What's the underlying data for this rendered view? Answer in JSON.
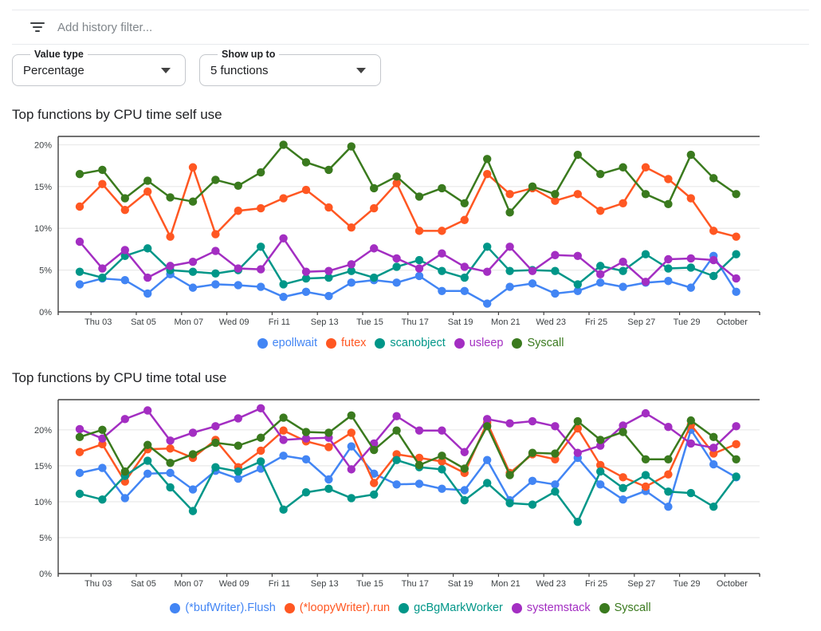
{
  "filter_bar": {
    "icon": "filter-list-icon",
    "placeholder": "Add history filter..."
  },
  "controls": {
    "value_type": {
      "label": "Value type",
      "value": "Percentage"
    },
    "show_up_to": {
      "label": "Show up to",
      "value": "5 functions"
    }
  },
  "chart_data": [
    {
      "type": "line",
      "title": "Top functions by CPU time self use",
      "x_labels": [
        "Thu 03",
        "Sat 05",
        "Mon 07",
        "Wed 09",
        "Fri 11",
        "Sep 13",
        "Tue 15",
        "Thu 17",
        "Sat 19",
        "Mon 21",
        "Wed 23",
        "Fri 25",
        "Sep 27",
        "Tue 29",
        "October"
      ],
      "y_tick_values": [
        0,
        5,
        10,
        15,
        20
      ],
      "y_tick_labels": [
        "0%",
        "5%",
        "10%",
        "15%",
        "20%"
      ],
      "ylim": [
        0,
        21
      ],
      "grid": "horizontal",
      "legend_position": "bottom",
      "series": [
        {
          "name": "epollwait",
          "color": "#4285F4",
          "values": [
            3.3,
            4.0,
            3.8,
            2.2,
            4.5,
            2.9,
            3.3,
            3.2,
            3.0,
            1.8,
            2.4,
            1.9,
            3.5,
            3.8,
            3.5,
            4.3,
            2.5,
            2.5,
            1.0,
            3.0,
            3.4,
            2.2,
            2.5,
            3.5,
            3.0,
            3.5,
            3.7,
            2.9,
            6.7,
            2.4
          ]
        },
        {
          "name": "futex",
          "color": "#FF5722",
          "values": [
            12.6,
            15.3,
            12.2,
            14.4,
            9.0,
            17.3,
            9.3,
            12.1,
            12.4,
            13.6,
            14.6,
            12.5,
            10.1,
            12.4,
            15.4,
            9.7,
            9.7,
            11.0,
            16.5,
            14.1,
            14.8,
            13.3,
            14.1,
            12.1,
            13.0,
            17.3,
            15.9,
            13.6,
            9.7,
            9.0
          ]
        },
        {
          "name": "scanobject",
          "color": "#009688",
          "values": [
            4.8,
            4.1,
            6.7,
            7.6,
            5.0,
            4.8,
            4.6,
            5.0,
            7.8,
            3.3,
            4.0,
            4.1,
            4.9,
            4.1,
            5.4,
            6.2,
            4.9,
            4.1,
            7.8,
            4.9,
            5.0,
            4.9,
            3.3,
            5.5,
            4.9,
            6.9,
            5.2,
            5.3,
            4.3,
            6.9
          ]
        },
        {
          "name": "usleep",
          "color": "#A32EC2",
          "values": [
            8.4,
            5.2,
            7.4,
            4.1,
            5.5,
            6.0,
            7.3,
            5.2,
            5.1,
            8.8,
            4.8,
            4.9,
            5.7,
            7.6,
            6.4,
            5.2,
            7.0,
            5.4,
            4.8,
            7.8,
            4.9,
            6.8,
            6.7,
            4.5,
            6.0,
            3.6,
            6.3,
            6.4,
            6.2,
            4.0
          ]
        },
        {
          "name": "Syscall",
          "color": "#3A7A1E",
          "values": [
            16.5,
            17.0,
            13.6,
            15.7,
            13.7,
            13.2,
            15.8,
            15.1,
            16.7,
            20.0,
            17.9,
            17.0,
            19.8,
            14.8,
            16.2,
            13.8,
            14.8,
            13.0,
            18.3,
            11.9,
            15.0,
            14.1,
            18.8,
            16.5,
            17.3,
            14.1,
            12.9,
            18.8,
            16.0,
            14.1
          ]
        }
      ]
    },
    {
      "type": "line",
      "title": "Top functions by CPU time total use",
      "x_labels": [
        "Thu 03",
        "Sat 05",
        "Mon 07",
        "Wed 09",
        "Fri 11",
        "Sep 13",
        "Tue 15",
        "Thu 17",
        "Sat 19",
        "Mon 21",
        "Wed 23",
        "Fri 25",
        "Sep 27",
        "Tue 29",
        "October"
      ],
      "y_tick_values": [
        0,
        5,
        10,
        15,
        20
      ],
      "y_tick_labels": [
        "0%",
        "5%",
        "10%",
        "15%",
        "20%"
      ],
      "ylim": [
        0,
        24.2
      ],
      "grid": "horizontal",
      "legend_position": "bottom",
      "series": [
        {
          "name": "(*bufWriter).Flush",
          "color": "#4285F4",
          "values": [
            14.0,
            14.7,
            10.5,
            13.9,
            14.0,
            11.7,
            14.3,
            13.2,
            14.6,
            16.4,
            15.9,
            13.1,
            17.7,
            13.9,
            12.4,
            12.5,
            11.8,
            11.6,
            15.8,
            10.2,
            12.9,
            12.4,
            16.1,
            12.4,
            10.3,
            11.5,
            9.3,
            20.0,
            15.2,
            13.4
          ]
        },
        {
          "name": "(*loopyWriter).run",
          "color": "#FF5722",
          "values": [
            16.9,
            18.0,
            12.8,
            17.3,
            17.4,
            16.1,
            18.6,
            14.8,
            17.1,
            19.9,
            18.4,
            17.6,
            19.6,
            12.6,
            16.6,
            16.1,
            15.6,
            14.0,
            21.0,
            14.0,
            16.6,
            15.9,
            20.2,
            15.1,
            13.4,
            12.1,
            13.8,
            20.7,
            16.7,
            18.0
          ]
        },
        {
          "name": "gcBgMarkWorker",
          "color": "#009688",
          "values": [
            11.1,
            10.3,
            13.6,
            15.7,
            12.0,
            8.7,
            14.8,
            14.2,
            15.6,
            8.9,
            11.3,
            11.8,
            10.5,
            11.0,
            15.8,
            14.8,
            14.5,
            10.2,
            12.6,
            9.8,
            9.6,
            11.4,
            7.2,
            14.2,
            11.9,
            13.7,
            11.4,
            11.2,
            9.3,
            13.5
          ]
        },
        {
          "name": "systemstack",
          "color": "#A32EC2",
          "values": [
            20.1,
            18.8,
            21.5,
            22.7,
            18.5,
            19.6,
            20.5,
            21.6,
            23.0,
            18.6,
            18.8,
            18.9,
            14.5,
            18.1,
            21.9,
            19.9,
            19.9,
            16.9,
            21.5,
            20.9,
            21.2,
            20.5,
            16.8,
            17.8,
            20.6,
            22.3,
            20.4,
            18.1,
            17.5,
            20.5
          ]
        },
        {
          "name": "Syscall",
          "color": "#3A7A1E",
          "values": [
            19.0,
            20.0,
            14.2,
            17.9,
            15.4,
            16.6,
            18.2,
            17.8,
            18.9,
            21.7,
            19.7,
            19.6,
            22.0,
            17.2,
            19.9,
            15.1,
            16.4,
            14.6,
            20.5,
            13.7,
            16.8,
            16.7,
            21.2,
            18.6,
            19.7,
            15.9,
            15.9,
            21.3,
            19.0,
            15.9
          ]
        }
      ]
    }
  ]
}
